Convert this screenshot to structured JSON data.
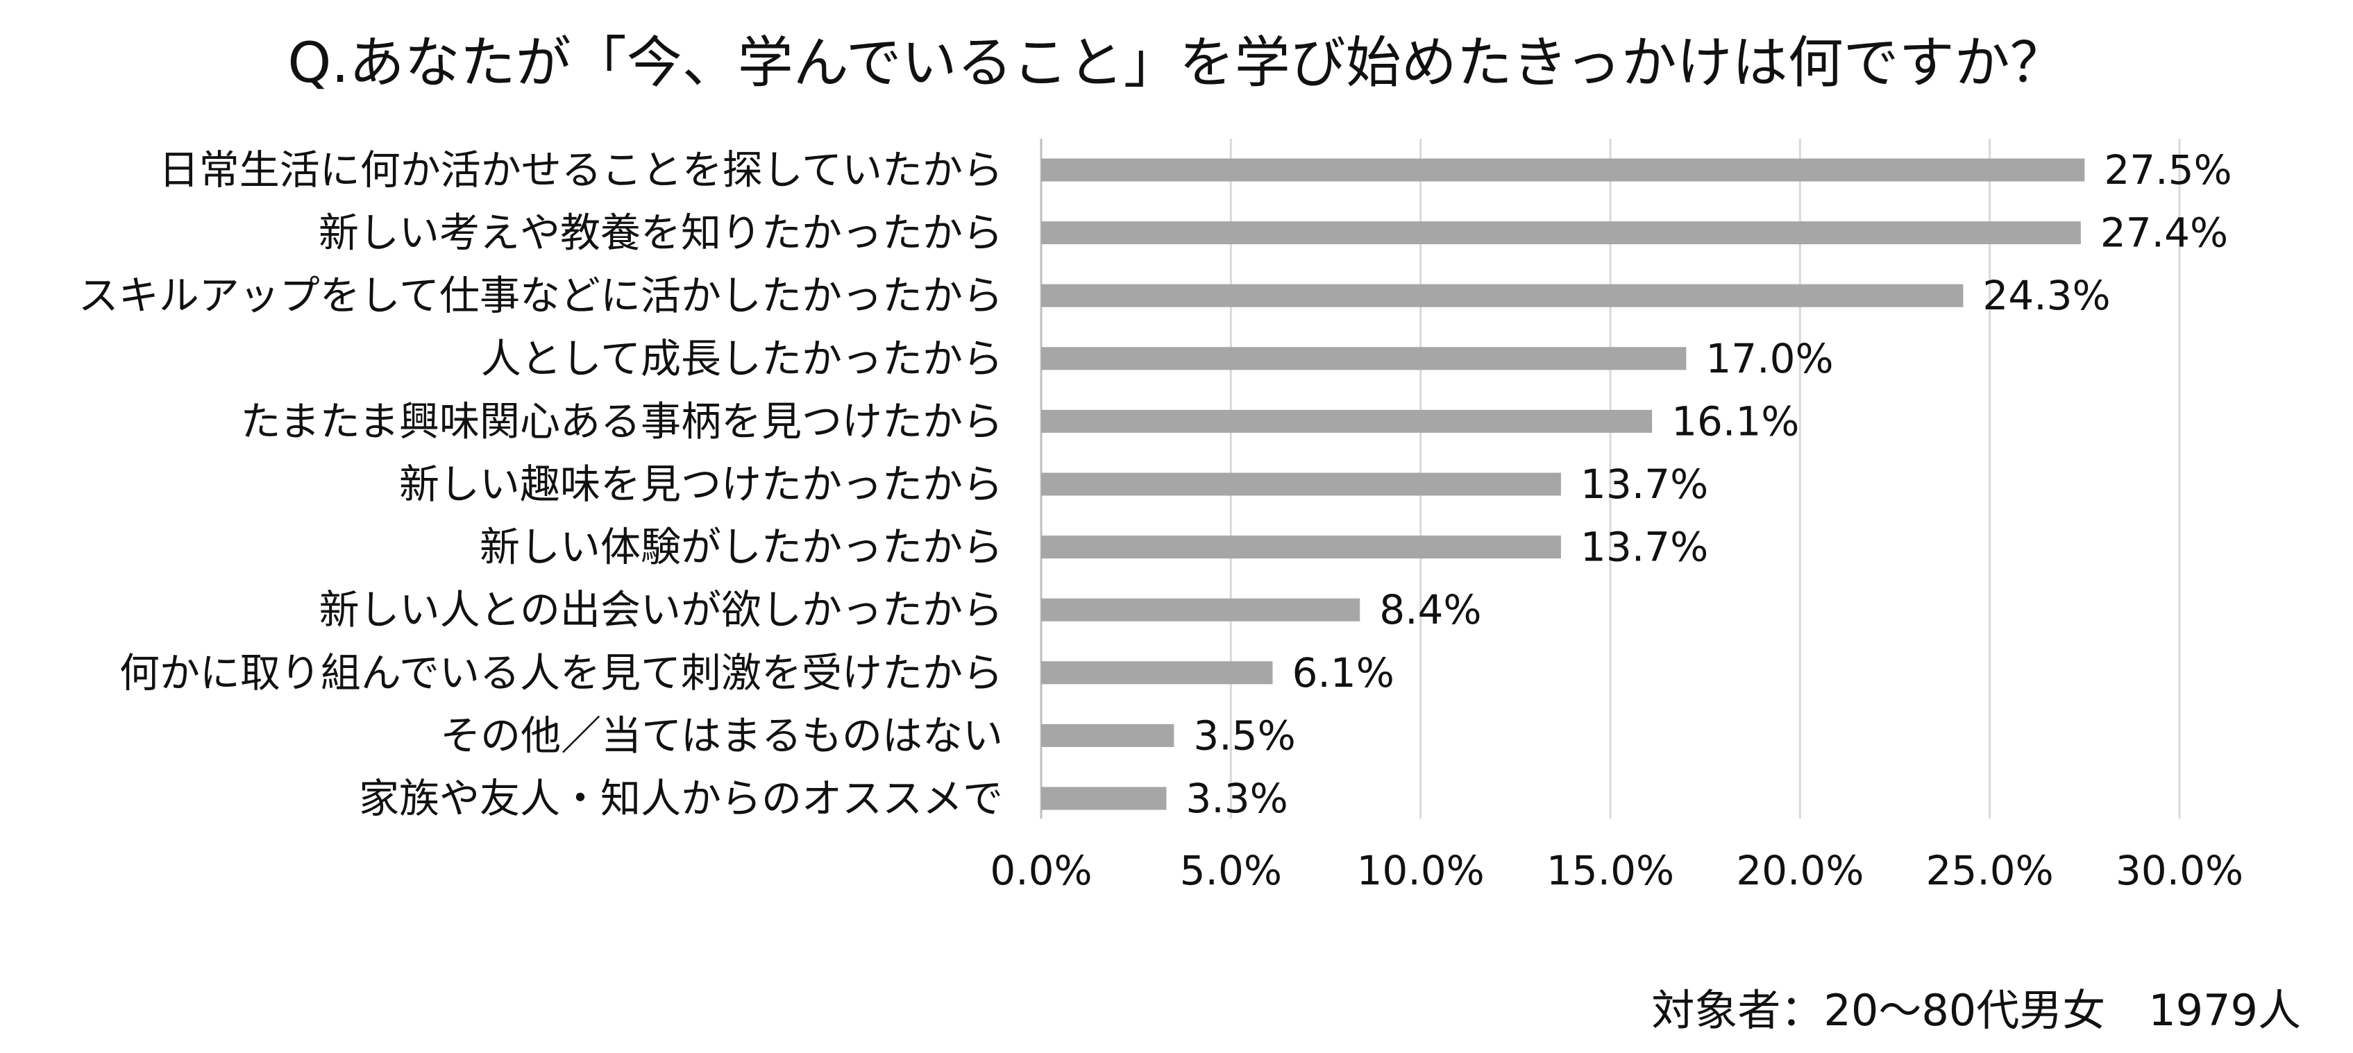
{
  "chart_data": {
    "type": "bar",
    "orientation": "horizontal",
    "title": "Q.あなたが「今、学んでいること」を学び始めたきっかけは何ですか？",
    "categories": [
      "日常生活に何か活かせることを探していたから",
      "新しい考えや教養を知りたかったから",
      "スキルアップをして仕事などに活かしたかったから",
      "人として成長したかったから",
      "たまたま興味関心ある事柄を見つけたから",
      "新しい趣味を見つけたかったから",
      "新しい体験がしたかったから",
      "新しい人との出会いが欲しかったから",
      "何かに取り組んでいる人を見て刺激を受けたから",
      "その他／当てはまるものはない",
      "家族や友人・知人からのオススメで"
    ],
    "values": [
      27.5,
      27.4,
      24.3,
      17.0,
      16.1,
      13.7,
      13.7,
      8.4,
      6.1,
      3.5,
      3.3
    ],
    "value_labels": [
      "27.5%",
      "27.4%",
      "24.3%",
      "17.0%",
      "16.1%",
      "13.7%",
      "13.7%",
      "8.4%",
      "6.1%",
      "3.5%",
      "3.3%"
    ],
    "xlim": [
      0,
      30
    ],
    "ticks": [
      0,
      5,
      10,
      15,
      20,
      25,
      30
    ],
    "tick_labels": [
      "0.0%",
      "5.0%",
      "10.0%",
      "15.0%",
      "20.0%",
      "25.0%",
      "30.0%"
    ],
    "grid": true,
    "bar_color": "#a6a6a6",
    "footnote": "対象者：20～80代男女　1979人"
  }
}
